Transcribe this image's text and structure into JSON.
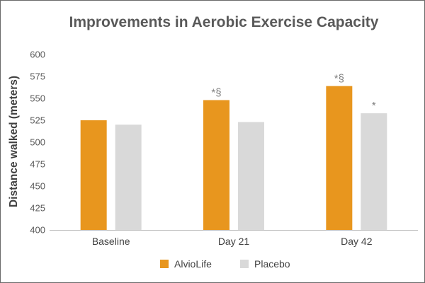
{
  "chart_data": {
    "type": "bar",
    "title": "Improvements in Aerobic Exercise Capacity",
    "xlabel": "",
    "ylabel": "Distance walked (meters)",
    "ylim": [
      400,
      600
    ],
    "yticks": [
      400,
      425,
      450,
      475,
      500,
      525,
      550,
      575,
      600
    ],
    "grid": false,
    "legend_position": "bottom",
    "categories": [
      "Baseline",
      "Day 21",
      "Day 42"
    ],
    "series": [
      {
        "name": "AlvioLife",
        "color": "#e8961e",
        "values": [
          525,
          548,
          564
        ],
        "annotations": [
          "",
          "*§",
          "*§"
        ]
      },
      {
        "name": "Placebo",
        "color": "#d9d9d9",
        "values": [
          520,
          523,
          533
        ],
        "annotations": [
          "",
          "",
          "*"
        ]
      }
    ]
  }
}
